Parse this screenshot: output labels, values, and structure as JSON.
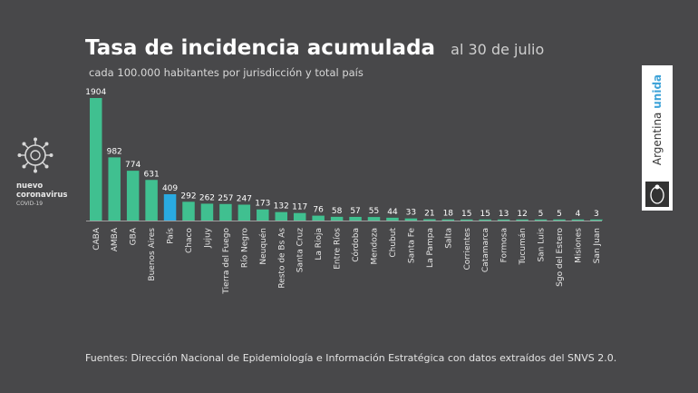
{
  "header": {
    "title": "Tasa de incidencia acumulada",
    "date": "al 30 de julio",
    "subtitle": "cada 100.000 habitantes por jurisdicción y total país"
  },
  "footer": {
    "sources": "Fuentes: Dirección Nacional de Epidemiología e Información Estratégica con datos extraídos del SNVS 2.0."
  },
  "badge": {
    "line1": "nuevo",
    "line2": "coronavirus",
    "line3": "COVID-19"
  },
  "brand": {
    "word1": "Argentina",
    "word2": "unida"
  },
  "colors": {
    "background": "#48484a",
    "bar": "#40c090",
    "highlight": "#29aae1",
    "axis": "#bbbbbb"
  },
  "chart_data": {
    "type": "bar",
    "title": "Tasa de incidencia acumulada",
    "subtitle": "cada 100.000 habitantes por jurisdicción y total país",
    "categories": [
      "CABA",
      "AMBA",
      "GBA",
      "Buenos Aires",
      "País",
      "Chaco",
      "Jujuy",
      "Tierra del Fuego",
      "Río Negro",
      "Neuquén",
      "Resto de Bs As",
      "Santa Cruz",
      "La Rioja",
      "Entre Ríos",
      "Córdoba",
      "Mendoza",
      "Chubut",
      "Santa Fe",
      "La Pampa",
      "Salta",
      "Corrientes",
      "Catamarca",
      "Formosa",
      "Tucumán",
      "San Luis",
      "Sgo del Estero",
      "Misiones",
      "San Juan"
    ],
    "values": [
      1904,
      982,
      774,
      631,
      409,
      292,
      262,
      257,
      247,
      173,
      132,
      117,
      76,
      58,
      57,
      55,
      44,
      33,
      21,
      18,
      15,
      15,
      13,
      12,
      5,
      5,
      4,
      3
    ],
    "highlight_category": "País",
    "ylim": [
      0,
      1904
    ],
    "grid": false,
    "legend": "none"
  }
}
